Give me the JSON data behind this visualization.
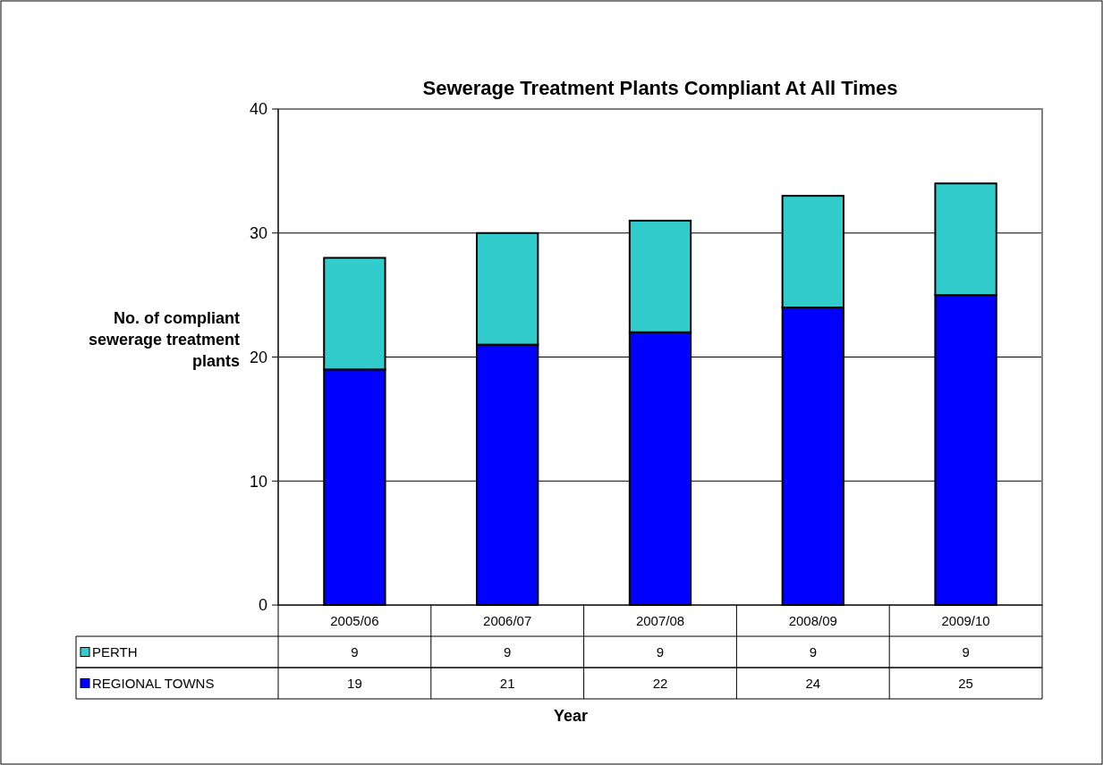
{
  "chart_data": {
    "type": "bar",
    "stacked": true,
    "title": "Sewerage Treatment Plants Compliant At All Times",
    "xlabel": "Year",
    "ylabel": "No. of compliant sewerage treatment plants",
    "categories": [
      "2005/06",
      "2006/07",
      "2007/08",
      "2008/09",
      "2009/10"
    ],
    "series": [
      {
        "name": "REGIONAL TOWNS",
        "color": "#0000ff",
        "values": [
          19,
          21,
          22,
          24,
          25
        ]
      },
      {
        "name": "PERTH",
        "color": "#33cccc",
        "values": [
          9,
          9,
          9,
          9,
          9
        ]
      }
    ],
    "ylim": [
      0,
      40
    ],
    "yticks": [
      0,
      10,
      20,
      30,
      40
    ],
    "grid": "y",
    "legend": "bottom",
    "data_labels": true
  }
}
